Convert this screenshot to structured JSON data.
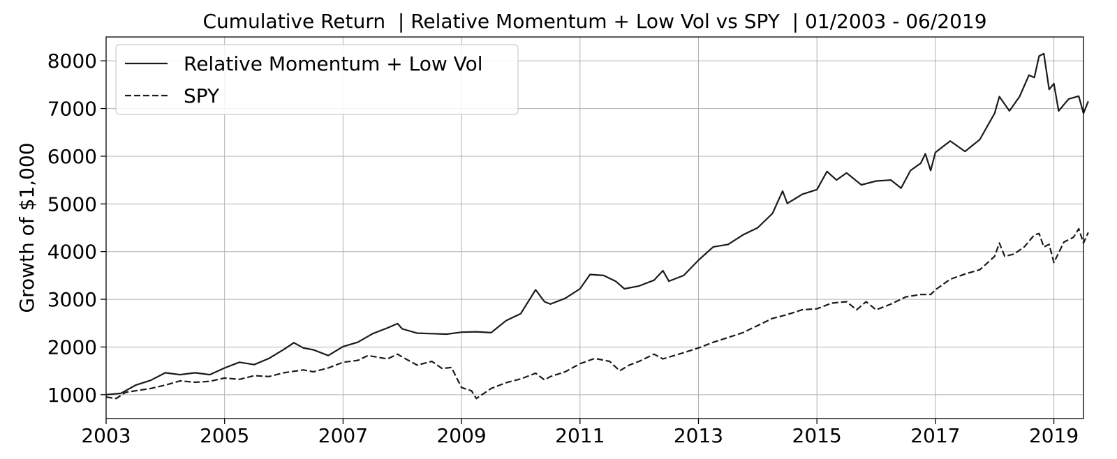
{
  "chart_data": {
    "type": "line",
    "title": "Cumulative Return  | Relative Momentum + Low Vol vs SPY  | 01/2003 - 06/2019",
    "xlabel": "",
    "ylabel": "Growth of $1,000",
    "xlim": [
      2003.0,
      2019.5
    ],
    "ylim": [
      500,
      8500
    ],
    "xticks": [
      2003,
      2005,
      2007,
      2009,
      2011,
      2013,
      2015,
      2017,
      2019
    ],
    "yticks": [
      1000,
      2000,
      3000,
      4000,
      5000,
      6000,
      7000,
      8000
    ],
    "xtick_labels": [
      "2003",
      "2005",
      "2007",
      "2009",
      "2011",
      "2013",
      "2015",
      "2017",
      "2019"
    ],
    "ytick_labels": [
      "1000",
      "2000",
      "3000",
      "4000",
      "5000",
      "6000",
      "7000",
      "8000"
    ],
    "grid": true,
    "legend_position": "top-left",
    "series": [
      {
        "name": "Relative Momentum + Low Vol",
        "style": "solid",
        "color": "#1a1a1a",
        "points": [
          [
            2003.0,
            1000
          ],
          [
            2003.25,
            1030
          ],
          [
            2003.5,
            1200
          ],
          [
            2003.75,
            1300
          ],
          [
            2004.0,
            1460
          ],
          [
            2004.25,
            1420
          ],
          [
            2004.5,
            1460
          ],
          [
            2004.75,
            1420
          ],
          [
            2005.0,
            1560
          ],
          [
            2005.25,
            1680
          ],
          [
            2005.5,
            1630
          ],
          [
            2005.75,
            1760
          ],
          [
            2006.0,
            1950
          ],
          [
            2006.17,
            2090
          ],
          [
            2006.33,
            1980
          ],
          [
            2006.5,
            1940
          ],
          [
            2006.75,
            1820
          ],
          [
            2007.0,
            2010
          ],
          [
            2007.25,
            2100
          ],
          [
            2007.5,
            2280
          ],
          [
            2007.75,
            2400
          ],
          [
            2007.92,
            2490
          ],
          [
            2008.0,
            2380
          ],
          [
            2008.25,
            2290
          ],
          [
            2008.5,
            2280
          ],
          [
            2008.75,
            2270
          ],
          [
            2009.0,
            2310
          ],
          [
            2009.25,
            2320
          ],
          [
            2009.5,
            2300
          ],
          [
            2009.75,
            2550
          ],
          [
            2010.0,
            2700
          ],
          [
            2010.25,
            3200
          ],
          [
            2010.4,
            2950
          ],
          [
            2010.5,
            2900
          ],
          [
            2010.75,
            3020
          ],
          [
            2011.0,
            3220
          ],
          [
            2011.17,
            3520
          ],
          [
            2011.4,
            3500
          ],
          [
            2011.6,
            3380
          ],
          [
            2011.75,
            3220
          ],
          [
            2012.0,
            3280
          ],
          [
            2012.25,
            3400
          ],
          [
            2012.4,
            3600
          ],
          [
            2012.5,
            3380
          ],
          [
            2012.75,
            3500
          ],
          [
            2013.0,
            3820
          ],
          [
            2013.25,
            4100
          ],
          [
            2013.5,
            4150
          ],
          [
            2013.75,
            4350
          ],
          [
            2014.0,
            4500
          ],
          [
            2014.25,
            4800
          ],
          [
            2014.42,
            5270
          ],
          [
            2014.5,
            5010
          ],
          [
            2014.75,
            5200
          ],
          [
            2015.0,
            5300
          ],
          [
            2015.17,
            5680
          ],
          [
            2015.33,
            5500
          ],
          [
            2015.5,
            5650
          ],
          [
            2015.75,
            5400
          ],
          [
            2016.0,
            5480
          ],
          [
            2016.25,
            5500
          ],
          [
            2016.42,
            5330
          ],
          [
            2016.58,
            5700
          ],
          [
            2016.75,
            5850
          ],
          [
            2016.83,
            6050
          ],
          [
            2016.92,
            5700
          ],
          [
            2017.0,
            6080
          ],
          [
            2017.25,
            6320
          ],
          [
            2017.5,
            6100
          ],
          [
            2017.75,
            6350
          ],
          [
            2018.0,
            6900
          ],
          [
            2018.08,
            7250
          ],
          [
            2018.25,
            6950
          ],
          [
            2018.42,
            7250
          ],
          [
            2018.58,
            7700
          ],
          [
            2018.67,
            7650
          ],
          [
            2018.75,
            8100
          ],
          [
            2018.83,
            8150
          ],
          [
            2018.92,
            7400
          ],
          [
            2019.0,
            7520
          ],
          [
            2019.08,
            6950
          ],
          [
            2019.25,
            7200
          ],
          [
            2019.42,
            7260
          ],
          [
            2019.5,
            6900
          ],
          [
            2019.58,
            7150
          ]
        ]
      },
      {
        "name": "SPY",
        "style": "dashed",
        "color": "#1a1a1a",
        "points": [
          [
            2003.0,
            950
          ],
          [
            2003.17,
            920
          ],
          [
            2003.33,
            1050
          ],
          [
            2003.75,
            1130
          ],
          [
            2004.0,
            1200
          ],
          [
            2004.25,
            1290
          ],
          [
            2004.5,
            1260
          ],
          [
            2004.75,
            1280
          ],
          [
            2005.0,
            1350
          ],
          [
            2005.25,
            1320
          ],
          [
            2005.5,
            1400
          ],
          [
            2005.75,
            1380
          ],
          [
            2006.0,
            1460
          ],
          [
            2006.33,
            1520
          ],
          [
            2006.5,
            1480
          ],
          [
            2006.75,
            1560
          ],
          [
            2007.0,
            1680
          ],
          [
            2007.25,
            1720
          ],
          [
            2007.42,
            1820
          ],
          [
            2007.75,
            1750
          ],
          [
            2007.92,
            1850
          ],
          [
            2008.0,
            1790
          ],
          [
            2008.25,
            1620
          ],
          [
            2008.5,
            1700
          ],
          [
            2008.67,
            1550
          ],
          [
            2008.83,
            1570
          ],
          [
            2009.0,
            1150
          ],
          [
            2009.17,
            1080
          ],
          [
            2009.25,
            920
          ],
          [
            2009.5,
            1130
          ],
          [
            2009.75,
            1250
          ],
          [
            2010.0,
            1330
          ],
          [
            2010.25,
            1450
          ],
          [
            2010.4,
            1310
          ],
          [
            2010.5,
            1380
          ],
          [
            2010.75,
            1480
          ],
          [
            2011.0,
            1650
          ],
          [
            2011.25,
            1760
          ],
          [
            2011.5,
            1700
          ],
          [
            2011.67,
            1500
          ],
          [
            2011.83,
            1620
          ],
          [
            2012.0,
            1700
          ],
          [
            2012.25,
            1850
          ],
          [
            2012.4,
            1750
          ],
          [
            2012.75,
            1880
          ],
          [
            2013.0,
            1980
          ],
          [
            2013.25,
            2100
          ],
          [
            2013.5,
            2200
          ],
          [
            2013.75,
            2300
          ],
          [
            2014.0,
            2450
          ],
          [
            2014.25,
            2600
          ],
          [
            2014.5,
            2680
          ],
          [
            2014.75,
            2780
          ],
          [
            2015.0,
            2800
          ],
          [
            2015.25,
            2920
          ],
          [
            2015.5,
            2950
          ],
          [
            2015.67,
            2780
          ],
          [
            2015.83,
            2950
          ],
          [
            2016.0,
            2780
          ],
          [
            2016.25,
            2900
          ],
          [
            2016.5,
            3050
          ],
          [
            2016.75,
            3100
          ],
          [
            2016.92,
            3100
          ],
          [
            2017.0,
            3200
          ],
          [
            2017.25,
            3420
          ],
          [
            2017.5,
            3530
          ],
          [
            2017.75,
            3620
          ],
          [
            2018.0,
            3900
          ],
          [
            2018.08,
            4180
          ],
          [
            2018.17,
            3900
          ],
          [
            2018.33,
            3950
          ],
          [
            2018.5,
            4100
          ],
          [
            2018.67,
            4350
          ],
          [
            2018.75,
            4380
          ],
          [
            2018.83,
            4100
          ],
          [
            2018.92,
            4150
          ],
          [
            2019.0,
            3770
          ],
          [
            2019.17,
            4200
          ],
          [
            2019.33,
            4300
          ],
          [
            2019.42,
            4480
          ],
          [
            2019.5,
            4180
          ],
          [
            2019.58,
            4400
          ]
        ]
      }
    ]
  }
}
